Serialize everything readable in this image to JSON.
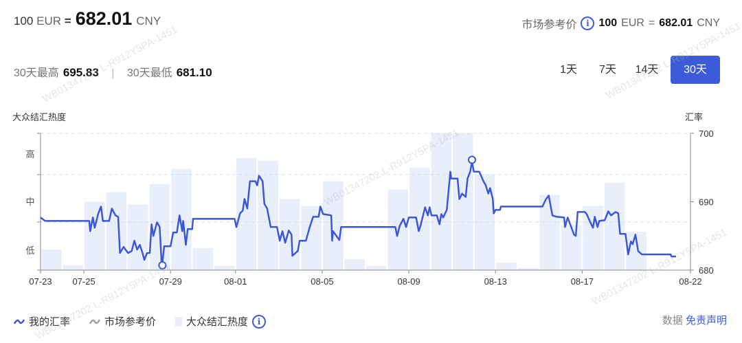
{
  "header": {
    "amount": "100",
    "base": "EUR",
    "equals": "=",
    "rate": "682.01",
    "quote": "CNY"
  },
  "market": {
    "label": "市场参考价",
    "info_icon": "info-circle-icon",
    "amount": "100",
    "base": "EUR",
    "equals": "=",
    "rate": "682.01",
    "quote": "CNY"
  },
  "stats": {
    "high_label": "30天最高",
    "high_value": "695.83",
    "separator": "|",
    "low_label": "30天最低",
    "low_value": "681.10"
  },
  "ranges": [
    {
      "label": "1天",
      "active": false
    },
    {
      "label": "7天",
      "active": false
    },
    {
      "label": "14天",
      "active": false
    },
    {
      "label": "30天",
      "active": true
    }
  ],
  "legend": {
    "my_rate": "我的汇率",
    "market_rate": "市场参考价",
    "heat": "大众结汇热度"
  },
  "disclaimer": {
    "prefix": "数据",
    "link": "免责声明"
  },
  "watermark": "WB01347202 L-R912Y5PA-1451",
  "colors": {
    "accent": "#3d5bd9",
    "line": "#3b57d6",
    "bar": "#e9eefb",
    "market_line": "#a0a0a0",
    "grid": "#d5dcf0"
  },
  "chart_data": {
    "type": "line+bar",
    "left_axis_title": "大众结汇热度",
    "right_axis_title": "汇率",
    "left_ticks": [
      "低",
      "中",
      "高"
    ],
    "right_ticks": [
      680,
      690,
      700
    ],
    "ylim": [
      680,
      700
    ],
    "x_ticks": [
      "07-23",
      "07-25",
      "07-29",
      "08-01",
      "08-05",
      "08-09",
      "08-13",
      "08-17",
      "08-22"
    ],
    "x_range": [
      "07-23",
      "08-22"
    ],
    "grid": "dashed horizontal",
    "legend_position": "bottom-left",
    "heat": {
      "name": "大众结汇热度",
      "dates": [
        "07-23",
        "07-24",
        "07-25",
        "07-26",
        "07-27",
        "07-28",
        "07-29",
        "07-30",
        "07-31",
        "08-01",
        "08-02",
        "08-03",
        "08-04",
        "08-05",
        "08-06",
        "08-07",
        "08-08",
        "08-09",
        "08-10",
        "08-11",
        "08-12",
        "08-13",
        "08-14",
        "08-15",
        "08-16",
        "08-17",
        "08-18",
        "08-19"
      ],
      "levels": [
        0.15,
        0.035,
        0.5,
        0.57,
        0.48,
        0.63,
        0.74,
        0.16,
        0.03,
        0.82,
        0.8,
        0.52,
        0.47,
        0.65,
        0.08,
        0.03,
        0.59,
        0.75,
        1.0,
        1.0,
        0.7,
        0.055,
        0.015,
        0.55,
        0.33,
        0.47,
        0.64,
        0.28
      ]
    },
    "rate": {
      "name": "我的汇率",
      "points": [
        [
          "07-23 00",
          687.7
        ],
        [
          "07-23 05",
          687.2
        ],
        [
          "07-25 06",
          687.2
        ],
        [
          "07-25 07",
          685.7
        ],
        [
          "07-25 10",
          687.7
        ],
        [
          "07-25 12",
          686.2
        ],
        [
          "07-25 16",
          688.3
        ],
        [
          "07-25 19",
          689.3
        ],
        [
          "07-25 21",
          687.2
        ],
        [
          "07-26 04",
          687.2
        ],
        [
          "07-26 07",
          689.0
        ],
        [
          "07-26 11",
          688.0
        ],
        [
          "07-26 14",
          687.8
        ],
        [
          "07-26 16",
          682.5
        ],
        [
          "07-26 20",
          683.4
        ],
        [
          "07-27 01",
          682.5
        ],
        [
          "07-27 05",
          682.8
        ],
        [
          "07-27 08",
          684.3
        ],
        [
          "07-27 11",
          683.0
        ],
        [
          "07-27 14",
          683.7
        ],
        [
          "07-27 17",
          682.5
        ],
        [
          "07-27 19",
          681.5
        ],
        [
          "07-27 22",
          682.5
        ],
        [
          "07-28 01",
          682.5
        ],
        [
          "07-28 03",
          686.7
        ],
        [
          "07-28 05",
          685.0
        ],
        [
          "07-28 09",
          687.0
        ],
        [
          "07-28 12",
          686.3
        ],
        [
          "07-28 14",
          681.3
        ],
        [
          "07-28 15",
          681.1
        ],
        [
          "07-28 17",
          683.5
        ],
        [
          "07-29 00",
          683.5
        ],
        [
          "07-29 03",
          685.5
        ],
        [
          "07-29 07",
          685.5
        ],
        [
          "07-29 10",
          688.0
        ],
        [
          "07-29 13",
          685.7
        ],
        [
          "07-29 14",
          687.2
        ],
        [
          "07-29 17",
          683.7
        ],
        [
          "07-29 19",
          686.0
        ],
        [
          "07-30 00",
          686.0
        ],
        [
          "07-30 01",
          687.5
        ],
        [
          "07-31 23",
          687.5
        ],
        [
          "08-01 01",
          686.3
        ],
        [
          "08-01 05",
          688.3
        ],
        [
          "08-01 08",
          688.7
        ],
        [
          "08-01 10",
          690.4
        ],
        [
          "08-01 13",
          689.0
        ],
        [
          "08-01 16",
          693.0
        ],
        [
          "08-01 22",
          693.0
        ],
        [
          "08-02 00",
          692.4
        ],
        [
          "08-02 02",
          693.8
        ],
        [
          "08-02 06",
          693.0
        ],
        [
          "08-02 08",
          689.7
        ],
        [
          "08-02 11",
          689.0
        ],
        [
          "08-02 15",
          686.3
        ],
        [
          "08-02 22",
          686.3
        ],
        [
          "08-03 01",
          684.3
        ],
        [
          "08-03 04",
          685.7
        ],
        [
          "08-03 07",
          684.0
        ],
        [
          "08-03 11",
          685.8
        ],
        [
          "08-03 14",
          685.2
        ],
        [
          "08-03 15",
          682.1
        ],
        [
          "08-03 21",
          682.8
        ],
        [
          "08-03 23",
          684.3
        ],
        [
          "08-04 06",
          684.3
        ],
        [
          "08-04 10",
          686.2
        ],
        [
          "08-04 14",
          687.8
        ],
        [
          "08-04 20",
          687.8
        ],
        [
          "08-04 22",
          689.3
        ],
        [
          "08-05 01",
          688.2
        ],
        [
          "08-05 10",
          688.0
        ],
        [
          "08-05 11",
          684.3
        ],
        [
          "08-05 12",
          685.7
        ],
        [
          "08-05 19",
          684.4
        ],
        [
          "08-05 21",
          686.3
        ],
        [
          "08-08 09",
          686.3
        ],
        [
          "08-08 11",
          685.0
        ],
        [
          "08-08 14",
          686.5
        ],
        [
          "08-08 18",
          687.5
        ],
        [
          "08-08 21",
          686.3
        ],
        [
          "08-09 00",
          687.7
        ],
        [
          "08-09 08",
          687.7
        ],
        [
          "08-09 11",
          685.7
        ],
        [
          "08-09 13",
          686.5
        ],
        [
          "08-09 18",
          689.2
        ],
        [
          "08-09 21",
          688.0
        ],
        [
          "08-09 23",
          689.2
        ],
        [
          "08-10 01",
          688.0
        ],
        [
          "08-10 07",
          688.0
        ],
        [
          "08-10 10",
          686.7
        ],
        [
          "08-10 12",
          688.2
        ],
        [
          "08-10 14",
          687.7
        ],
        [
          "08-10 18",
          688.8
        ],
        [
          "08-10 22",
          694.4
        ],
        [
          "08-10 23",
          693.4
        ],
        [
          "08-11 06",
          693.4
        ],
        [
          "08-11 08",
          690.4
        ],
        [
          "08-11 11",
          691.2
        ],
        [
          "08-11 15",
          690.7
        ],
        [
          "08-11 17",
          693.4
        ],
        [
          "08-11 20",
          694.4
        ],
        [
          "08-11 22",
          695.83
        ],
        [
          "08-12 00",
          694.4
        ],
        [
          "08-12 06",
          694.4
        ],
        [
          "08-12 11",
          692.9
        ],
        [
          "08-12 13",
          692.5
        ],
        [
          "08-12 16",
          691.2
        ],
        [
          "08-12 18",
          692.0
        ],
        [
          "08-12 21",
          690.4
        ],
        [
          "08-12 22",
          688.3
        ],
        [
          "08-13 00",
          688.8
        ],
        [
          "08-13 05",
          688.8
        ],
        [
          "08-13 06",
          689.3
        ],
        [
          "08-15 04",
          689.3
        ],
        [
          "08-15 08",
          690.4
        ],
        [
          "08-15 11",
          690.9
        ],
        [
          "08-15 15",
          688.0
        ],
        [
          "08-15 20",
          687.8
        ],
        [
          "08-16 04",
          687.7
        ],
        [
          "08-16 05",
          686.3
        ],
        [
          "08-16 08",
          687.7
        ],
        [
          "08-16 15",
          685.2
        ],
        [
          "08-16 17",
          685.0
        ],
        [
          "08-16 19",
          688.5
        ],
        [
          "08-17 03",
          688.5
        ],
        [
          "08-17 05",
          688.2
        ],
        [
          "08-17 09",
          687.0
        ],
        [
          "08-17 12",
          686.2
        ],
        [
          "08-17 14",
          687.8
        ],
        [
          "08-17 17",
          686.3
        ],
        [
          "08-17 19",
          687.2
        ],
        [
          "08-18 01",
          687.3
        ],
        [
          "08-18 05",
          688.6
        ],
        [
          "08-18 08",
          688.0
        ],
        [
          "08-18 13",
          688.5
        ],
        [
          "08-18 16",
          688.3
        ],
        [
          "08-18 18",
          685.3
        ],
        [
          "08-19 00",
          685.3
        ],
        [
          "08-19 03",
          682.3
        ],
        [
          "08-19 06",
          684.2
        ],
        [
          "08-19 08",
          683.8
        ],
        [
          "08-19 11",
          685.2
        ],
        [
          "08-19 14",
          682.8
        ],
        [
          "08-19 18",
          682.3
        ],
        [
          "08-21 02",
          682.3
        ],
        [
          "08-21 03",
          682.0
        ],
        [
          "08-21 08",
          682.0
        ]
      ],
      "max": {
        "date": "08-11 22",
        "value": 695.83
      },
      "min": {
        "date": "07-28 15",
        "value": 681.1
      }
    }
  }
}
